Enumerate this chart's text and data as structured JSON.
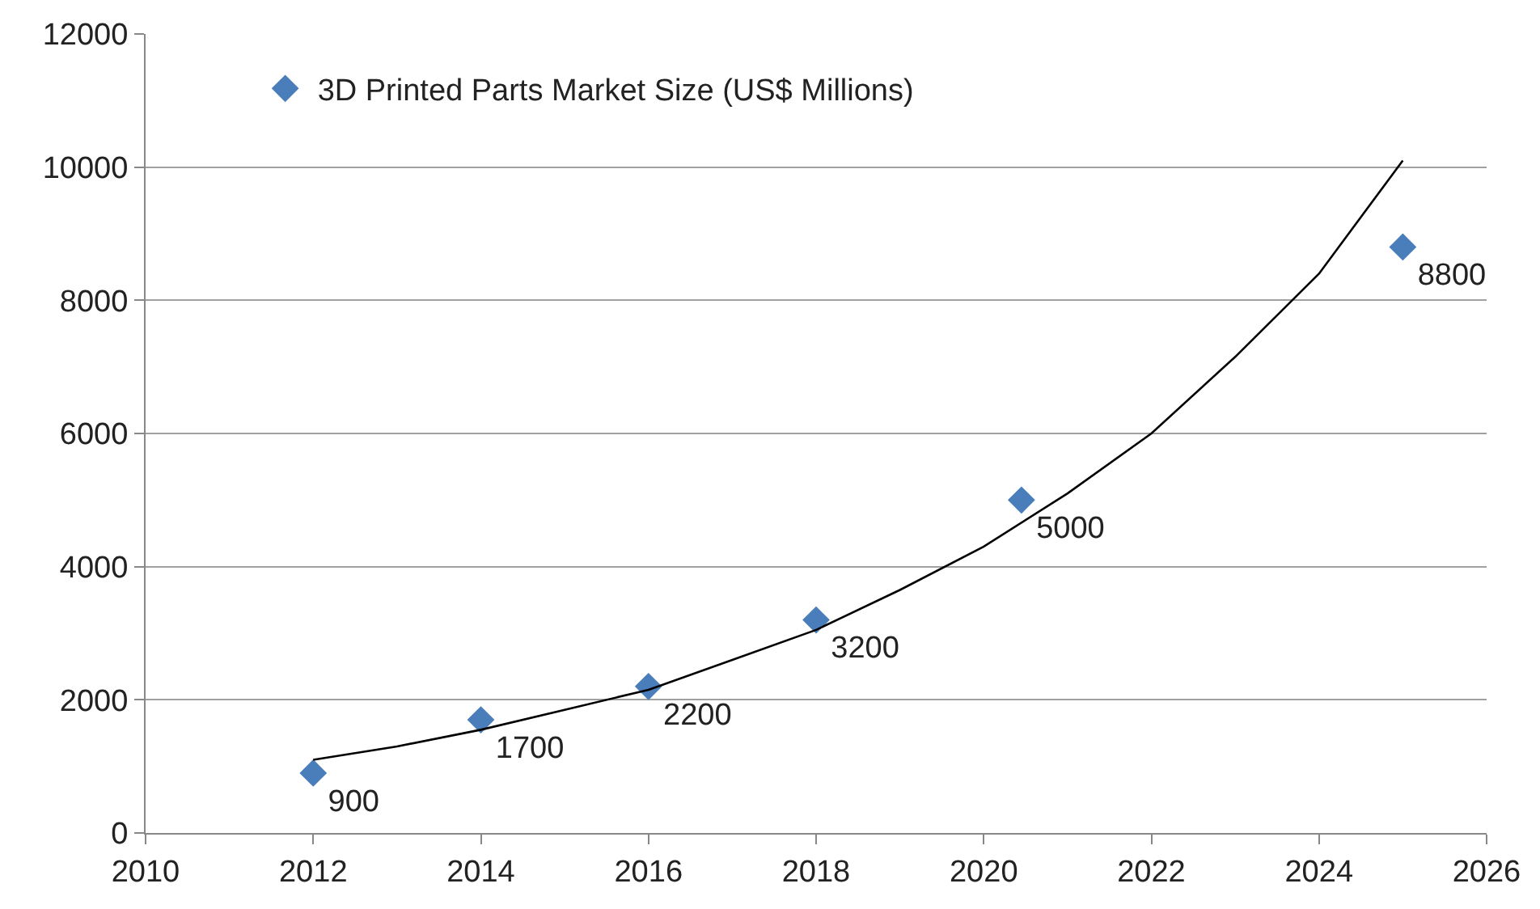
{
  "chart_data": {
    "type": "scatter",
    "xlim": [
      2010,
      2026
    ],
    "xticks": [
      2010,
      2012,
      2014,
      2016,
      2018,
      2020,
      2022,
      2024,
      2026
    ],
    "ylim": [
      0,
      12000
    ],
    "yticks": [
      0,
      2000,
      4000,
      6000,
      8000,
      10000,
      12000
    ],
    "grid": "y",
    "legend": "top left",
    "marker": "diamond",
    "series": [
      {
        "name": "3D Printed Parts Market Size (US$ Millions)",
        "color": "#4a7ebb",
        "x": [
          2012,
          2014,
          2016,
          2018,
          2020.45,
          2025
        ],
        "values": [
          900,
          1700,
          2200,
          3200,
          5000,
          8800
        ],
        "value_labels": [
          "900",
          "1700",
          "2200",
          "3200",
          "5000",
          "8800"
        ]
      },
      {
        "type": "line",
        "color": "#000000",
        "marker": "none",
        "x": [
          2012,
          2013,
          2014,
          2015,
          2016,
          2017,
          2018,
          2019,
          2020,
          2021,
          2022,
          2023,
          2024,
          2025
        ],
        "values": [
          1100,
          1300,
          1550,
          1850,
          2150,
          2600,
          3050,
          3650,
          4300,
          5100,
          6000,
          7150,
          8400,
          10100
        ]
      }
    ]
  }
}
